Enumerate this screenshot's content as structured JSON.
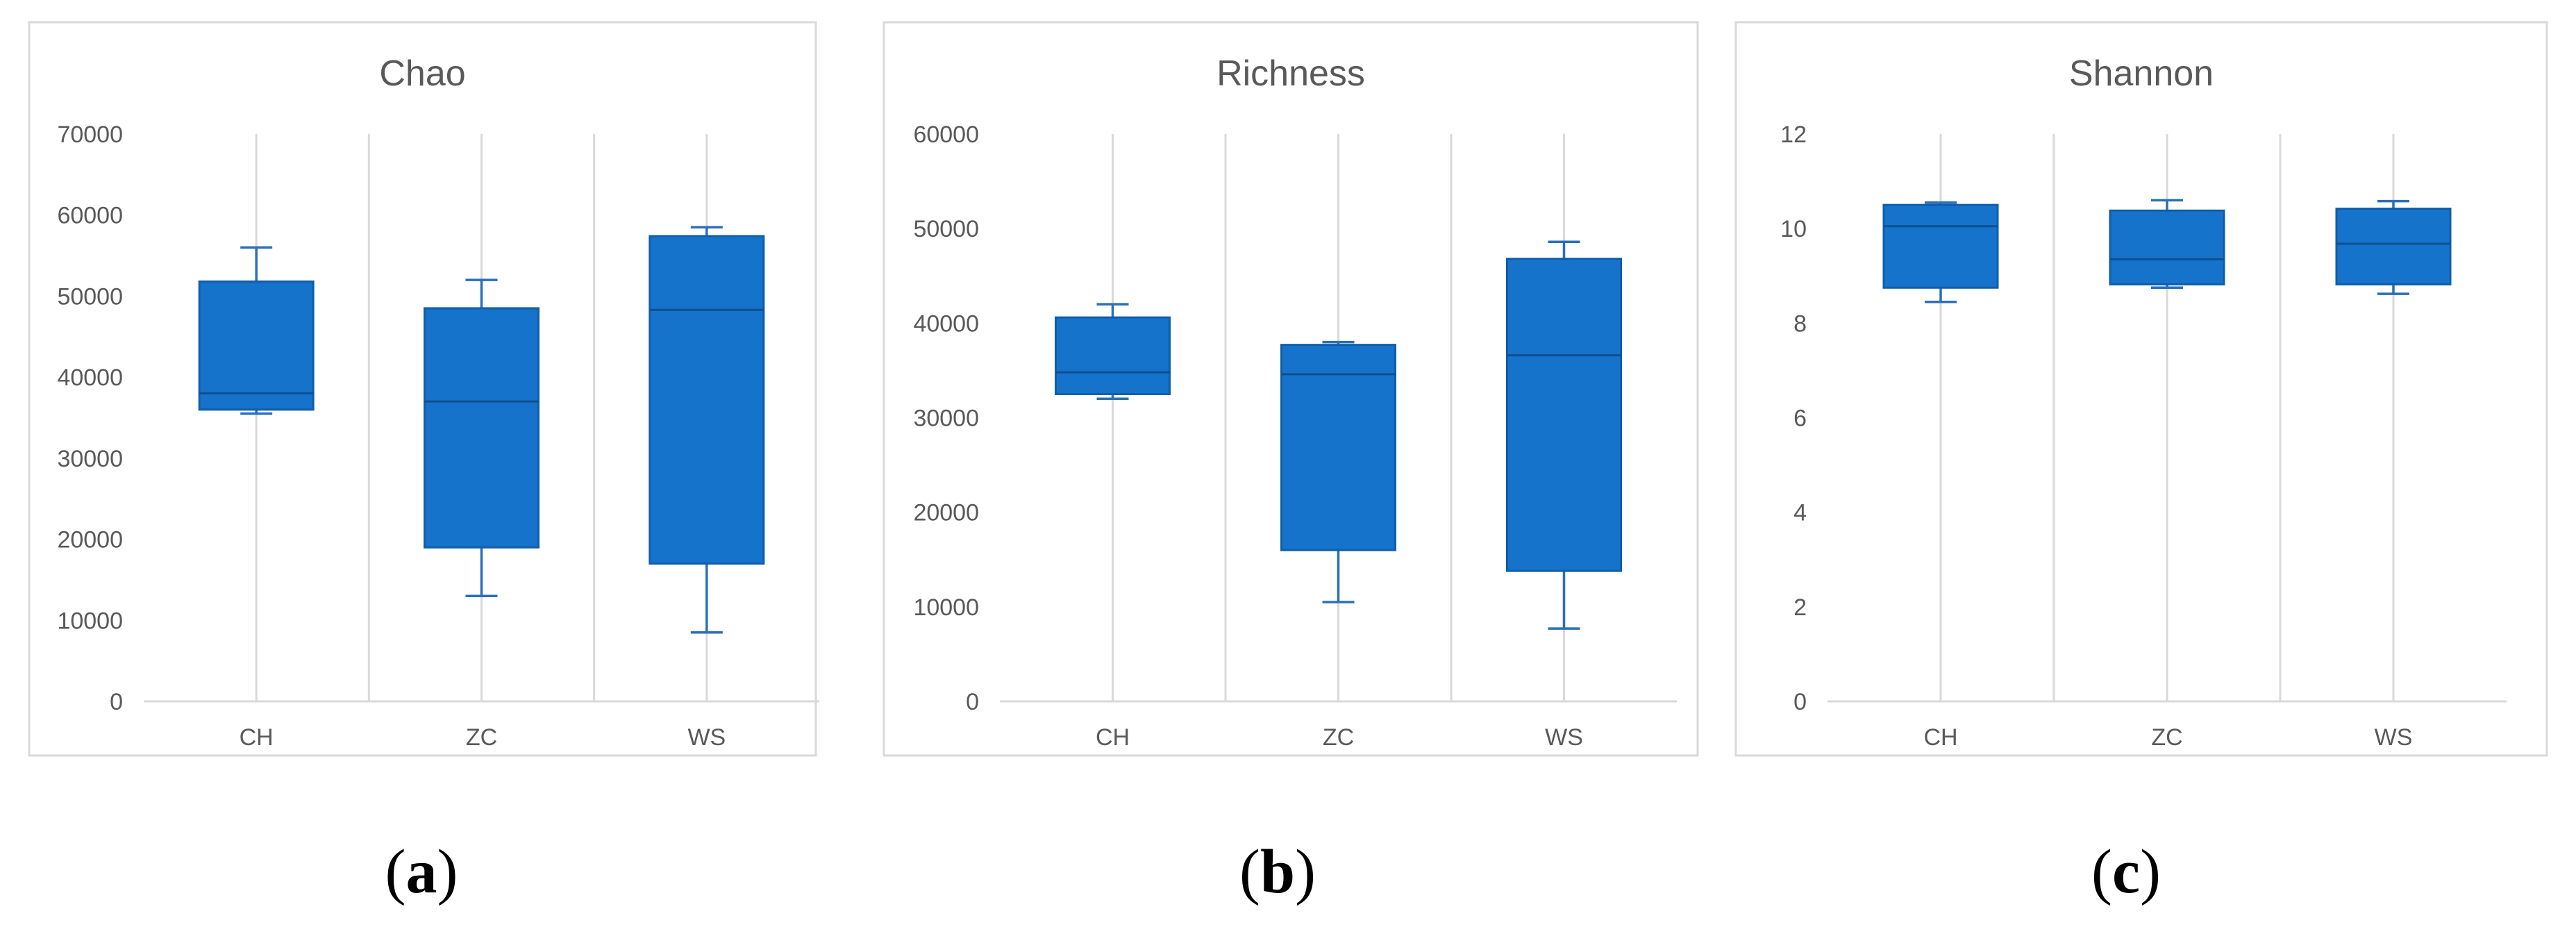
{
  "colors": {
    "box_fill": "#1673cc",
    "box_stroke": "#0f5ea8",
    "median_line": "#0d4f8f",
    "whisker": "#2a6fb8"
  },
  "chart_data": [
    {
      "type": "box",
      "title": "Chao",
      "panel_label": "a",
      "categories": [
        "CH",
        "ZC",
        "WS"
      ],
      "ylim": [
        0,
        70000
      ],
      "yticks": [
        0,
        10000,
        20000,
        30000,
        40000,
        50000,
        60000,
        70000
      ],
      "grid": "vertical",
      "legend": "none",
      "boxes": [
        {
          "category": "CH",
          "min": 35500,
          "q1": 36000,
          "median": 38000,
          "q3": 51800,
          "max": 56000
        },
        {
          "category": "ZC",
          "min": 13000,
          "q1": 19000,
          "median": 37000,
          "q3": 48500,
          "max": 52000
        },
        {
          "category": "WS",
          "min": 8500,
          "q1": 17000,
          "median": 48300,
          "q3": 57400,
          "max": 58500
        }
      ]
    },
    {
      "type": "box",
      "title": "Richness",
      "panel_label": "b",
      "categories": [
        "CH",
        "ZC",
        "WS"
      ],
      "ylim": [
        0,
        60000
      ],
      "yticks": [
        0,
        10000,
        20000,
        30000,
        40000,
        50000,
        60000
      ],
      "grid": "vertical",
      "legend": "none",
      "boxes": [
        {
          "category": "CH",
          "min": 32000,
          "q1": 32500,
          "median": 34800,
          "q3": 40600,
          "max": 42000
        },
        {
          "category": "ZC",
          "min": 10500,
          "q1": 16000,
          "median": 34600,
          "q3": 37700,
          "max": 38000
        },
        {
          "category": "WS",
          "min": 7700,
          "q1": 13800,
          "median": 36600,
          "q3": 46800,
          "max": 48600
        }
      ]
    },
    {
      "type": "box",
      "title": "Shannon",
      "panel_label": "c",
      "categories": [
        "CH",
        "ZC",
        "WS"
      ],
      "ylim": [
        0,
        12
      ],
      "yticks": [
        0,
        2,
        4,
        6,
        8,
        10,
        12
      ],
      "grid": "vertical",
      "legend": "none",
      "boxes": [
        {
          "category": "CH",
          "min": 8.45,
          "q1": 8.75,
          "median": 10.05,
          "q3": 10.5,
          "max": 10.55
        },
        {
          "category": "ZC",
          "min": 8.75,
          "q1": 8.82,
          "median": 9.35,
          "q3": 10.38,
          "max": 10.6
        },
        {
          "category": "WS",
          "min": 8.62,
          "q1": 8.82,
          "median": 9.68,
          "q3": 10.42,
          "max": 10.58
        }
      ]
    }
  ]
}
